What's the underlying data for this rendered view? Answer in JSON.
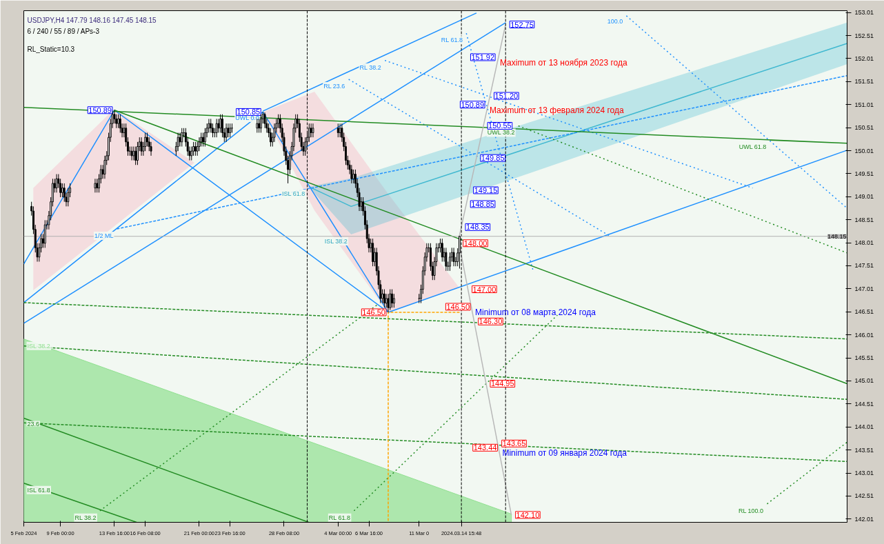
{
  "chart_data": {
    "type": "candlestick",
    "title": "USDJPY,H4  147.79 148.16 147.45 148.15",
    "subtitle": "6 / 240 / 55 / 89 / APs-3",
    "x": [
      "2024-02-06T12:00",
      "2024-02-06T16:00",
      "2024-02-06T20:00",
      "2024-02-07T00:00",
      "2024-02-07T04:00",
      "2024-02-07T08:00",
      "2024-02-07T12:00",
      "2024-02-07T16:00",
      "2024-02-07T20:00",
      "2024-02-08T00:00",
      "2024-02-08T04:00",
      "2024-02-08T08:00",
      "2024-02-08T12:00",
      "2024-02-08T16:00",
      "2024-02-08T20:00",
      "2024-02-09T00:00",
      "2024-02-09T04:00",
      "2024-02-09T08:00",
      "2024-02-09T12:00",
      "2024-02-09T16:00",
      "2024-02-09T20:00",
      "2024-02-12T00:00",
      "2024-02-12T04:00",
      "2024-02-12T08:00",
      "2024-02-12T12:00",
      "2024-02-12T16:00",
      "2024-02-12T20:00",
      "2024-02-13T00:00",
      "2024-02-13T04:00",
      "2024-02-13T08:00",
      "2024-02-13T12:00",
      "2024-02-13T16:00",
      "2024-02-13T20:00",
      "2024-02-14T00:00",
      "2024-02-14T04:00",
      "2024-02-14T08:00",
      "2024-02-14T12:00",
      "2024-02-14T16:00",
      "2024-02-14T20:00",
      "2024-02-15T00:00",
      "2024-02-15T04:00",
      "2024-02-15T08:00",
      "2024-02-15T12:00",
      "2024-02-15T16:00",
      "2024-02-15T20:00",
      "2024-02-16T00:00",
      "2024-02-16T04:00",
      "2024-02-16T08:00",
      "2024-02-16T12:00",
      "2024-02-16T16:00",
      "2024-02-16T20:00",
      "2024-02-19T00:00",
      "2024-02-19T04:00",
      "2024-02-19T08:00",
      "2024-02-19T12:00",
      "2024-02-19T16:00",
      "2024-02-19T20:00",
      "2024-02-20T00:00",
      "2024-02-20T04:00",
      "2024-02-20T08:00",
      "2024-02-20T12:00",
      "2024-02-20T16:00",
      "2024-02-20T20:00",
      "2024-02-21T00:00",
      "2024-02-21T04:00",
      "2024-02-21T08:00",
      "2024-02-21T12:00",
      "2024-02-21T16:00",
      "2024-02-21T20:00",
      "2024-02-22T00:00",
      "2024-02-22T04:00",
      "2024-02-22T08:00",
      "2024-02-22T12:00",
      "2024-02-22T16:00",
      "2024-02-22T20:00",
      "2024-02-23T00:00",
      "2024-02-23T04:00",
      "2024-02-23T08:00",
      "2024-02-23T12:00",
      "2024-02-23T16:00",
      "2024-02-23T20:00",
      "2024-02-26T00:00",
      "2024-02-26T04:00",
      "2024-02-26T08:00",
      "2024-02-26T12:00",
      "2024-02-26T16:00",
      "2024-02-26T20:00",
      "2024-02-27T00:00",
      "2024-02-27T04:00",
      "2024-02-27T08:00",
      "2024-02-27T12:00",
      "2024-02-27T16:00",
      "2024-02-27T20:00",
      "2024-02-28T00:00",
      "2024-02-28T04:00",
      "2024-02-28T08:00",
      "2024-02-28T12:00",
      "2024-02-28T16:00",
      "2024-02-28T20:00",
      "2024-02-29T00:00",
      "2024-02-29T04:00",
      "2024-02-29T08:00",
      "2024-02-29T12:00",
      "2024-02-29T16:00",
      "2024-02-29T20:00",
      "2024-03-01T00:00",
      "2024-03-01T04:00",
      "2024-03-01T08:00",
      "2024-03-01T12:00",
      "2024-03-01T16:00",
      "2024-03-01T20:00",
      "2024-03-04T00:00",
      "2024-03-04T04:00",
      "2024-03-04T08:00",
      "2024-03-04T12:00",
      "2024-03-04T16:00",
      "2024-03-04T20:00",
      "2024-03-05T00:00",
      "2024-03-05T04:00",
      "2024-03-05T08:00",
      "2024-03-05T12:00",
      "2024-03-05T16:00",
      "2024-03-05T20:00",
      "2024-03-06T00:00",
      "2024-03-06T04:00",
      "2024-03-06T08:00",
      "2024-03-06T12:00",
      "2024-03-06T16:00",
      "2024-03-06T20:00",
      "2024-03-07T00:00",
      "2024-03-07T04:00",
      "2024-03-07T08:00",
      "2024-03-07T12:00",
      "2024-03-07T16:00",
      "2024-03-07T20:00",
      "2024-03-08T00:00",
      "2024-03-08T04:00",
      "2024-03-08T08:00",
      "2024-03-08T12:00",
      "2024-03-08T16:00",
      "2024-03-08T20:00",
      "2024-03-11T00:00",
      "2024-03-11T04:00",
      "2024-03-11T08:00",
      "2024-03-11T12:00",
      "2024-03-11T16:00",
      "2024-03-11T20:00",
      "2024-03-12T00:00",
      "2024-03-12T04:00",
      "2024-03-12T08:00",
      "2024-03-12T12:00",
      "2024-03-12T16:00",
      "2024-03-12T20:00",
      "2024-03-13T00:00",
      "2024-03-13T04:00",
      "2024-03-13T08:00",
      "2024-03-13T12:00",
      "2024-03-13T16:00",
      "2024-03-13T20:00",
      "2024-03-14T00:00",
      "2024-03-14T04:00",
      "2024-03-14T08:00",
      "2024-03-14T12:00"
    ],
    "ohlc": [
      [
        148.8,
        148.9,
        148.6,
        148.7
      ],
      [
        148.7,
        148.8,
        148.2,
        148.3
      ],
      [
        148.3,
        148.4,
        147.8,
        147.9
      ],
      [
        147.9,
        148.0,
        147.6,
        147.7
      ],
      [
        147.7,
        148.0,
        147.6,
        147.9
      ],
      [
        147.9,
        148.2,
        147.8,
        148.1
      ],
      [
        148.1,
        148.2,
        147.9,
        148.0
      ],
      [
        148.0,
        148.5,
        147.9,
        148.4
      ],
      [
        148.4,
        148.5,
        148.3,
        148.4
      ],
      [
        148.4,
        148.7,
        148.3,
        148.6
      ],
      [
        148.6,
        149.0,
        148.5,
        148.9
      ],
      [
        148.9,
        149.4,
        148.8,
        149.3
      ],
      [
        149.3,
        149.4,
        149.1,
        149.2
      ],
      [
        149.2,
        149.5,
        149.1,
        149.4
      ],
      [
        149.4,
        149.5,
        149.2,
        149.3
      ],
      [
        149.3,
        149.4,
        149.0,
        149.1
      ],
      [
        149.1,
        149.3,
        149.0,
        149.2
      ],
      [
        149.2,
        149.3,
        148.9,
        149.0
      ],
      [
        149.0,
        149.1,
        148.8,
        148.9
      ],
      [
        148.9,
        149.2,
        148.8,
        149.1
      ],
      [
        149.1,
        149.3,
        149.0,
        149.2
      ],
      [
        149.2,
        149.4,
        149.1,
        149.3
      ],
      [
        149.3,
        149.4,
        149.1,
        149.2
      ],
      [
        149.2,
        149.5,
        149.1,
        149.4
      ],
      [
        149.4,
        149.7,
        149.3,
        149.6
      ],
      [
        149.6,
        149.7,
        149.4,
        149.5
      ],
      [
        149.5,
        149.9,
        149.4,
        149.8
      ],
      [
        149.8,
        150.0,
        149.7,
        149.9
      ],
      [
        149.9,
        150.4,
        149.8,
        150.3
      ],
      [
        150.3,
        150.7,
        150.2,
        150.6
      ],
      [
        150.6,
        150.85,
        150.5,
        150.8
      ],
      [
        150.8,
        150.89,
        150.6,
        150.7
      ],
      [
        150.7,
        150.8,
        150.5,
        150.6
      ],
      [
        150.6,
        150.8,
        150.5,
        150.7
      ],
      [
        150.7,
        150.8,
        150.4,
        150.5
      ],
      [
        150.5,
        150.6,
        150.3,
        150.4
      ],
      [
        150.4,
        150.6,
        150.3,
        150.5
      ],
      [
        150.5,
        150.6,
        150.1,
        150.2
      ],
      [
        150.2,
        150.3,
        149.9,
        150.0
      ],
      [
        150.0,
        150.1,
        149.9,
        150.0
      ],
      [
        150.0,
        150.1,
        149.8,
        149.9
      ],
      [
        149.9,
        150.1,
        149.8,
        150.0
      ],
      [
        150.0,
        150.1,
        149.7,
        149.8
      ],
      [
        149.8,
        150.2,
        149.7,
        150.1
      ],
      [
        150.1,
        150.3,
        150.0,
        150.2
      ],
      [
        150.2,
        150.3,
        149.9,
        150.0
      ],
      [
        150.0,
        150.2,
        149.9,
        150.1
      ],
      [
        150.1,
        150.4,
        150.0,
        150.3
      ],
      [
        150.3,
        150.4,
        150.1,
        150.2
      ],
      [
        150.2,
        150.3,
        150.0,
        150.1
      ],
      [
        150.1,
        150.2,
        149.9,
        150.0
      ],
      [
        150.0,
        150.2,
        149.9,
        150.1
      ],
      [
        150.1,
        150.4,
        150.0,
        150.3
      ],
      [
        150.3,
        150.4,
        150.1,
        150.2
      ],
      [
        150.2,
        150.5,
        150.1,
        150.4
      ],
      [
        150.4,
        150.5,
        150.3,
        150.4
      ],
      [
        150.4,
        150.5,
        150.1,
        150.2
      ],
      [
        150.2,
        150.3,
        149.9,
        150.0
      ],
      [
        150.0,
        150.1,
        149.8,
        149.9
      ],
      [
        149.9,
        150.1,
        149.8,
        150.0
      ],
      [
        150.0,
        150.2,
        149.9,
        150.1
      ],
      [
        150.1,
        150.2,
        149.9,
        150.0
      ],
      [
        150.0,
        150.2,
        149.9,
        150.1
      ],
      [
        150.1,
        150.3,
        150.0,
        150.2
      ],
      [
        150.2,
        150.4,
        150.1,
        150.3
      ],
      [
        150.3,
        150.4,
        150.1,
        150.2
      ],
      [
        150.2,
        150.5,
        150.1,
        150.4
      ],
      [
        150.4,
        150.6,
        150.3,
        150.5
      ],
      [
        150.5,
        150.7,
        150.4,
        150.6
      ],
      [
        150.6,
        150.7,
        150.4,
        150.5
      ],
      [
        150.5,
        150.6,
        150.3,
        150.4
      ],
      [
        150.4,
        150.5,
        150.3,
        150.4
      ],
      [
        150.4,
        150.7,
        150.3,
        150.6
      ],
      [
        150.6,
        150.7,
        150.4,
        150.5
      ],
      [
        150.5,
        150.8,
        150.4,
        150.7
      ],
      [
        150.7,
        150.8,
        150.3,
        150.4
      ],
      [
        150.4,
        150.5,
        150.2,
        150.3
      ],
      [
        150.3,
        150.6,
        150.2,
        150.5
      ],
      [
        150.5,
        150.6,
        150.3,
        150.4
      ],
      [
        150.4,
        150.6,
        150.3,
        150.5
      ],
      [
        150.5,
        150.6,
        150.4,
        150.5
      ],
      [
        150.5,
        150.7,
        150.4,
        150.6
      ],
      [
        150.6,
        150.7,
        150.4,
        150.5
      ],
      [
        150.5,
        150.8,
        150.4,
        150.7
      ],
      [
        150.7,
        150.85,
        150.6,
        150.8
      ],
      [
        150.8,
        150.84,
        150.5,
        150.6
      ],
      [
        150.6,
        150.7,
        150.4,
        150.5
      ],
      [
        150.5,
        150.6,
        150.3,
        150.4
      ],
      [
        150.4,
        150.5,
        150.1,
        150.2
      ],
      [
        150.2,
        150.4,
        150.1,
        150.3
      ],
      [
        150.3,
        150.6,
        150.2,
        150.5
      ],
      [
        150.5,
        150.7,
        150.4,
        150.6
      ],
      [
        150.6,
        150.8,
        150.5,
        150.7
      ],
      [
        150.7,
        150.8,
        150.4,
        150.5
      ],
      [
        150.5,
        150.6,
        150.2,
        150.3
      ],
      [
        150.3,
        150.4,
        149.9,
        150.0
      ],
      [
        150.0,
        150.1,
        149.7,
        149.8
      ],
      [
        149.8,
        149.9,
        149.3,
        149.6
      ],
      [
        149.6,
        150.0,
        149.5,
        149.9
      ],
      [
        149.9,
        150.2,
        149.8,
        150.1
      ],
      [
        150.1,
        150.6,
        150.0,
        150.5
      ],
      [
        150.5,
        150.8,
        150.4,
        150.7
      ],
      [
        150.7,
        150.8,
        150.5,
        150.6
      ],
      [
        150.6,
        150.7,
        150.2,
        150.3
      ],
      [
        150.3,
        150.4,
        150.0,
        150.1
      ],
      [
        150.1,
        150.2,
        149.9,
        150.0
      ],
      [
        150.0,
        150.3,
        149.9,
        150.2
      ],
      [
        150.2,
        150.4,
        150.1,
        150.3
      ],
      [
        150.3,
        150.6,
        150.2,
        150.5
      ],
      [
        150.5,
        150.6,
        150.3,
        150.4
      ],
      [
        150.4,
        150.6,
        150.3,
        150.5
      ],
      [
        150.5,
        150.6,
        150.3,
        150.4
      ],
      [
        150.4,
        150.6,
        150.3,
        150.5
      ],
      [
        150.5,
        150.6,
        150.2,
        150.3
      ],
      [
        150.3,
        150.4,
        150.0,
        150.1
      ],
      [
        150.1,
        150.2,
        149.7,
        149.8
      ],
      [
        149.8,
        149.9,
        149.6,
        149.7
      ],
      [
        149.7,
        149.8,
        149.5,
        149.6
      ],
      [
        149.6,
        149.7,
        149.3,
        149.4
      ],
      [
        149.4,
        149.6,
        149.3,
        149.5
      ],
      [
        149.5,
        149.6,
        149.2,
        149.3
      ],
      [
        149.3,
        149.4,
        149.0,
        149.1
      ],
      [
        149.1,
        149.2,
        148.7,
        148.8
      ],
      [
        148.8,
        149.0,
        148.7,
        148.9
      ],
      [
        148.9,
        149.0,
        148.6,
        148.7
      ],
      [
        148.7,
        148.8,
        148.3,
        148.4
      ],
      [
        148.4,
        148.5,
        148.0,
        148.1
      ],
      [
        148.1,
        148.2,
        147.8,
        147.9
      ],
      [
        147.9,
        148.1,
        147.8,
        148.0
      ],
      [
        148.0,
        148.1,
        147.5,
        147.6
      ],
      [
        147.6,
        147.9,
        147.5,
        147.8
      ],
      [
        147.8,
        147.9,
        147.3,
        147.4
      ],
      [
        147.4,
        147.5,
        147.0,
        147.1
      ],
      [
        147.1,
        147.2,
        146.7,
        146.8
      ],
      [
        146.8,
        147.0,
        146.7,
        146.9
      ],
      [
        146.9,
        147.0,
        146.6,
        146.7
      ],
      [
        146.7,
        146.9,
        146.6,
        146.8
      ],
      [
        146.8,
        146.9,
        146.5,
        146.6
      ],
      [
        146.6,
        147.0,
        146.55,
        146.9
      ],
      [
        146.9,
        147.0,
        146.6,
        146.7
      ],
      [
        146.7,
        146.9,
        146.6,
        146.8
      ],
      [
        146.8,
        146.9,
        146.7,
        146.8
      ],
      [
        146.8,
        147.1,
        146.7,
        147.0
      ],
      [
        147.0,
        147.5,
        146.9,
        147.4
      ],
      [
        147.4,
        147.8,
        147.3,
        147.7
      ],
      [
        147.7,
        148.0,
        147.6,
        147.9
      ],
      [
        147.9,
        148.0,
        147.8,
        147.9
      ],
      [
        147.9,
        148.0,
        147.4,
        147.5
      ],
      [
        147.5,
        147.6,
        147.2,
        147.3
      ],
      [
        147.3,
        147.7,
        147.2,
        147.6
      ],
      [
        147.6,
        148.0,
        147.5,
        147.9
      ],
      [
        147.9,
        148.0,
        147.8,
        147.9
      ],
      [
        147.9,
        148.1,
        147.8,
        148.0
      ],
      [
        148.0,
        148.1,
        147.6,
        147.7
      ],
      [
        147.7,
        147.9,
        147.6,
        147.8
      ],
      [
        147.8,
        147.9,
        147.4,
        147.5
      ],
      [
        147.5,
        147.6,
        147.4,
        147.5
      ],
      [
        147.5,
        147.8,
        147.4,
        147.7
      ],
      [
        147.7,
        147.9,
        147.6,
        147.8
      ],
      [
        147.8,
        147.9,
        147.5,
        147.6
      ],
      [
        147.6,
        147.7,
        147.5,
        147.6
      ],
      [
        147.6,
        147.89,
        147.5,
        147.79
      ],
      [
        147.79,
        148.16,
        147.45,
        148.15
      ]
    ],
    "xlim": [
      "2024-02-05T20:00",
      "2024-04-17T00:00"
    ],
    "ylim": [
      141.94,
      153.05
    ],
    "xticks": [
      {
        "value": "2024-02-05T20:00",
        "label": "5 Feb 2024"
      },
      {
        "value": "2024-02-09T00:00",
        "label": "9 Feb 00:00"
      },
      {
        "value": "2024-02-13T16:00",
        "label": "13 Feb 16:00"
      },
      {
        "value": "2024-02-16T08:00",
        "label": "16 Feb 08:00"
      },
      {
        "value": "2024-02-21T00:00",
        "label": "21 Feb 00:00"
      },
      {
        "value": "2024-02-23T16:00",
        "label": "23 Feb 16:00"
      },
      {
        "value": "2024-02-28T08:00",
        "label": "28 Feb 08:00"
      },
      {
        "value": "2024-03-04T00:00",
        "label": "4 Mar 00:00"
      },
      {
        "value": "2024-03-06T16:00",
        "label": "6 Mar 16:00"
      },
      {
        "value": "2024-03-11T00:00",
        "label": "11 Mar 0"
      },
      {
        "value": "2024-03-14T15:48",
        "label": "2024.03.14 15:48"
      }
    ],
    "yticks": [
      142.01,
      142.51,
      143.01,
      143.51,
      144.01,
      144.51,
      145.01,
      145.51,
      146.01,
      146.51,
      147.01,
      147.51,
      148.01,
      148.51,
      149.01,
      149.51,
      150.01,
      150.51,
      151.01,
      151.51,
      152.01,
      152.51,
      153.01
    ],
    "grid": false,
    "series": [
      {
        "type": "line",
        "color": "#f8b4c4",
        "x": [
          "2024-02-06T15:40",
          "2024-02-13T16:00",
          "2024-02-20T14:00"
        ],
        "values": [
          null,
          null,
          null
        ],
        "upper": [
          149.2,
          150.92,
          149.75
        ],
        "lower": [
          146.98,
          148.37,
          149.75
        ]
      },
      {
        "type": "line",
        "color": "#f8b4c4",
        "x": [
          "2024-02-26T12:00",
          "2024-03-01T23:00",
          "2024-03-08T08:00",
          "2024-03-14T11:00"
        ],
        "values": [
          null,
          null,
          null,
          null
        ],
        "upper": [
          150.85,
          151.29,
          149.07,
          147.04
        ],
        "lower": [
          150.85,
          148.71,
          146.49,
          147.04
        ]
      },
      {
        "type": "line",
        "color": "#40b8d0",
        "x": [
          "2024-03-01T11:00",
          "2024-03-05T03:00",
          "2024-04-17T00:00"
        ],
        "values": [
          149.23,
          148.8,
          152.34
        ],
        "upper": [
          149.23,
          149.41,
          152.79
        ],
        "lower": [
          149.23,
          148.19,
          151.89
        ]
      },
      {
        "type": "area",
        "name": "ISL 38.2",
        "color": "#90e090",
        "x": [
          "2024-02-05T20:00",
          "2024-03-18T23:30"
        ],
        "values": [
          145.92,
          142.12
        ]
      },
      {
        "type": "line",
        "color": "#1e90ff",
        "x": [
          "2024-02-05T20:00",
          "2024-02-13T16:00",
          "2024-03-08T08:00"
        ],
        "values": [
          147.55,
          150.89,
          146.5
        ]
      },
      {
        "type": "line",
        "color": "#1e90ff",
        "x": [
          "2024-02-05T20:00",
          "2024-02-26T12:00",
          "2024-03-08T08:00"
        ],
        "values": [
          146.71,
          150.85,
          146.5
        ]
      },
      {
        "type": "line",
        "color": "#1e90ff",
        "x": [
          "2024-02-05T20:00",
          "2024-03-18T11:30"
        ],
        "values": [
          146.26,
          152.79
        ]
      },
      {
        "type": "line",
        "color": "#1e90ff",
        "x": [
          "2024-03-08T08:00",
          "2024-04-17T00:00"
        ],
        "values": [
          146.5,
          150.02
        ]
      },
      {
        "type": "line",
        "name": "UWL 0.0",
        "color": "#1e90ff",
        "x": [
          "2024-02-26T12:00",
          "2024-03-15T23:00"
        ],
        "values": [
          150.87,
          153.0
        ]
      },
      {
        "type": "line",
        "name": "1/2 ML",
        "color": "#1e90ff",
        "line_style": "dashed",
        "x": [
          "2024-02-13T21:00",
          "2024-04-17T00:00"
        ],
        "values": [
          148.31,
          151.64
        ]
      },
      {
        "type": "line",
        "name": "RL 23.6",
        "color": "#1e90ff",
        "line_style": "dotted",
        "x": [
          "2024-03-04T22:00",
          "2024-03-27T11:00"
        ],
        "values": [
          151.56,
          148.16
        ]
      },
      {
        "type": "line",
        "name": "RL 38.2",
        "color": "#1e90ff",
        "line_style": "dotted",
        "x": [
          "2024-03-08T01:00",
          "2024-04-08T20:00"
        ],
        "values": [
          151.97,
          149.2
        ]
      },
      {
        "type": "line",
        "name": "RL 61.8",
        "color": "#1e90ff",
        "line_style": "dotted",
        "x": [
          "2024-03-15T02:00",
          "2024-03-20T20:30"
        ],
        "values": [
          152.56,
          147.41
        ]
      },
      {
        "type": "line",
        "name": "100.0",
        "color": "#1e90ff",
        "line_style": "dotted",
        "x": [
          "2024-03-28T22:00",
          "2024-04-17T00:00"
        ],
        "values": [
          152.94,
          148.76
        ]
      },
      {
        "type": "line",
        "name": "UWL 61.8",
        "color": "#228b22",
        "x": [
          "2024-04-10T08:00",
          "2024-04-17T00:00",
          "2024-02-05T20:00"
        ],
        "values": [
          150.24,
          150.17,
          150.95
        ]
      },
      {
        "type": "line",
        "color": "#228b22",
        "x": [
          "2024-02-13T16:00",
          "2024-04-17T00:00"
        ],
        "values": [
          150.89,
          144.95
        ]
      },
      {
        "type": "line",
        "name": "UWL 38.2",
        "color": "#228b22",
        "line_style": "dotted",
        "x": [
          "2024-03-19T14:00",
          "2024-04-17T00:00"
        ],
        "values": [
          150.55,
          147.79
        ]
      },
      {
        "type": "line",
        "color": "#228b22",
        "line_style": "dashed",
        "x": [
          "2024-02-05T20:00",
          "2024-04-17T00:00"
        ],
        "values": [
          146.71,
          145.92
        ]
      },
      {
        "type": "line",
        "color": "#228b22",
        "line_style": "dashed",
        "x": [
          "2024-02-05T20:00",
          "2024-04-17T00:00"
        ],
        "values": [
          145.77,
          144.61
        ]
      },
      {
        "type": "line",
        "color": "#228b22",
        "line_style": "dashed",
        "x": [
          "2024-02-05T20:00",
          "2024-04-17T00:00"
        ],
        "values": [
          144.1,
          143.26
        ]
      },
      {
        "type": "line",
        "name": "23.6",
        "color": "#228b22",
        "x": [
          "2024-02-05T20:00",
          "2024-03-01T11:00"
        ],
        "values": [
          144.2,
          141.94
        ]
      },
      {
        "type": "line",
        "name": "ISL 61.8",
        "color": "#228b22",
        "x": [
          "2024-02-05T20:00",
          "2024-02-15T14:00"
        ],
        "values": [
          142.79,
          141.94
        ]
      },
      {
        "type": "line",
        "name": "RL 38.2",
        "color": "#228b22",
        "line_style": "dotted",
        "x": [
          "2024-02-12T10:00",
          "2024-03-07T10:00"
        ],
        "values": [
          142.19,
          146.67
        ]
      },
      {
        "type": "line",
        "name": "RL 61.8",
        "color": "#228b22",
        "line_style": "dotted",
        "x": [
          "2024-03-05T09:00",
          "2024-03-22T23:00"
        ],
        "values": [
          142.19,
          146.44
        ]
      },
      {
        "type": "line",
        "name": "RL 100.0",
        "color": "#228b22",
        "line_style": "dotted",
        "x": [
          "2024-04-10T02:00",
          "2024-04-17T00:00"
        ],
        "values": [
          142.34,
          143.68
        ]
      },
      {
        "type": "line",
        "color": "#ffa500",
        "line_style": "dashed",
        "x": [
          "2024-03-14T12:00",
          "2024-03-08T08:00",
          "2024-03-08T08:00"
        ],
        "values": [
          146.5,
          146.5,
          141.94
        ]
      },
      {
        "type": "line",
        "color": "#b8b8b8",
        "x": [
          "2024-03-18T11:30",
          "2024-03-14T11:00",
          "2024-03-14T11:00",
          "2024-03-18T23:30"
        ],
        "values": [
          152.75,
          148.13,
          148.0,
          142.1
        ]
      }
    ],
    "ref_lines": [
      {
        "axis": "x",
        "value": "2024-03-01T08:00",
        "color": "#000000",
        "line_style": "dashed"
      },
      {
        "axis": "x",
        "value": "2024-03-14T15:48",
        "color": "#000000",
        "line_style": "dashed"
      },
      {
        "axis": "x",
        "value": "2024-03-18T11:30",
        "color": "#000000",
        "line_style": "dashed"
      },
      {
        "axis": "y",
        "value": 148.15,
        "label": "148.15",
        "color": "#b0b0b0",
        "line_style": "solid"
      }
    ],
    "annotations": [
      "RL_Static=10.3",
      {
        "text": "ISL 61.8",
        "x": "2024-03-01T11:00",
        "y": 149.23
      },
      {
        "text": "ISL 38.2",
        "x": "2024-03-05T03:00",
        "y": 148.19
      },
      {
        "text": "150.89",
        "x": "2024-02-13T16:00",
        "y": 150.89
      },
      {
        "text": "150.85",
        "x": "2024-02-26T12:00",
        "y": 150.85
      },
      {
        "text": "146.50",
        "x": "2024-03-08T08:00",
        "y": 146.5
      },
      {
        "text": "152.75",
        "x": "2024-03-18T11:30",
        "y": 152.75
      },
      {
        "text": "151.92",
        "x": "2024-03-17T18:10",
        "y": 151.92
      },
      {
        "text": "151.20",
        "x": "2024-03-17T03:05",
        "y": 151.2
      },
      {
        "text": "150.89",
        "x": "2024-03-16T20:40",
        "y": 150.89
      },
      {
        "text": "150.55",
        "x": "2024-03-16T13:33",
        "y": 150.55
      },
      {
        "text": "149.85",
        "x": "2024-03-15T22:56",
        "y": 149.85
      },
      {
        "text": "149.15",
        "x": "2024-03-15T08:18",
        "y": 149.15
      },
      {
        "text": "148.85",
        "x": "2024-03-15T02:02",
        "y": 148.85
      },
      {
        "text": "148.35",
        "x": "2024-03-14T15:36",
        "y": 148.35
      },
      {
        "text": "148.00",
        "x": "2024-03-14T11:00",
        "y": 148.0
      },
      {
        "text": "147.00",
        "x": "2024-03-15T05:23",
        "y": 147.0
      },
      {
        "text": "146.50",
        "x": "2024-03-15T14:35",
        "y": 146.5
      },
      {
        "text": "146.30",
        "x": "2024-03-15T18:16",
        "y": 146.3
      },
      {
        "text": "144.95",
        "x": "2024-03-16T19:05",
        "y": 144.95
      },
      {
        "text": "143.65",
        "x": "2024-03-17T19:00",
        "y": 143.65
      },
      {
        "text": "143.44",
        "x": "2024-03-17T22:52",
        "y": 143.44
      },
      {
        "text": "142.10",
        "x": "2024-03-18T23:30",
        "y": 142.1
      },
      {
        "text": "Maximum от 13 ноября 2023 года",
        "x": "2024-03-17T18:10",
        "y": 151.92
      },
      {
        "text": "Maximum от 13 февраля 2024 года",
        "x": "2024-03-16T20:40",
        "y": 150.89
      },
      {
        "text": "Minimum от 08 марта 2024 года",
        "x": "2024-03-15T14:35",
        "y": 146.5
      },
      {
        "text": "Minimum от  09 января 2024 года",
        "x": "2024-03-17T22:52",
        "y": 143.44
      }
    ]
  }
}
